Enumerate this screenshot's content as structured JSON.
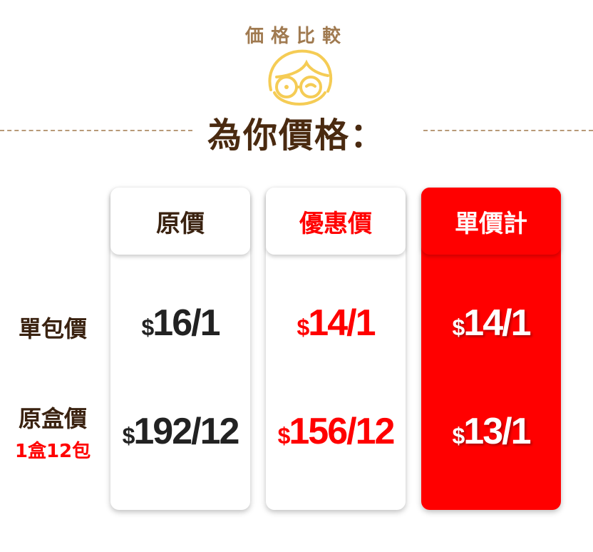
{
  "subtitle": "価格比較",
  "title": "為你價格：",
  "rows": [
    {
      "label": "單包價",
      "note": ""
    },
    {
      "label": "原盒價",
      "note": "1盒12包"
    }
  ],
  "columns": [
    {
      "header": "原價",
      "values": [
        "16/1",
        "192/12"
      ]
    },
    {
      "header": "優惠價",
      "values": [
        "14/1",
        "156/12"
      ]
    },
    {
      "header": "單價計",
      "values": [
        "14/1",
        "13/1"
      ]
    }
  ],
  "currency": "$",
  "colors": {
    "accent": "#ff0000",
    "brown": "#4a2a10",
    "face": "#f5cc55"
  }
}
